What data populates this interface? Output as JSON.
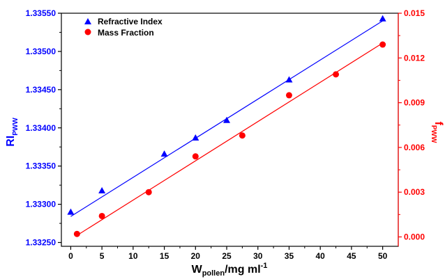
{
  "chart_data": {
    "type": "scatter",
    "x_axis": {
      "label_main": "W",
      "label_sub": "pollen",
      "label_unit": "/mg ml",
      "label_sup": "-1",
      "range": [
        -1.5,
        52.5
      ],
      "ticks": [
        0,
        5,
        10,
        15,
        20,
        25,
        30,
        35,
        40,
        45,
        50
      ],
      "tick_labels": [
        "0",
        "5",
        "10",
        "15",
        "20",
        "25",
        "30",
        "35",
        "40",
        "45",
        "50"
      ]
    },
    "y_axis_left": {
      "label_main": "RI",
      "label_sub": "PWW",
      "range": [
        1.33245,
        1.3355
      ],
      "ticks": [
        1.3325,
        1.333,
        1.3335,
        1.334,
        1.3345,
        1.335,
        1.3355
      ],
      "tick_labels": [
        "1.33250",
        "1.33300",
        "1.33350",
        "1.33400",
        "1.33450",
        "1.33500",
        "1.33550"
      ],
      "color": "#0000ff"
    },
    "y_axis_right": {
      "label_main": "f",
      "label_sub": "PWW",
      "range": [
        -0.00063,
        0.015
      ],
      "ticks": [
        0,
        0.003,
        0.006,
        0.009,
        0.012,
        0.015
      ],
      "tick_labels": [
        "0.000",
        "0.003",
        "0.006",
        "0.009",
        "0.012",
        "0.015"
      ],
      "color": "#ff0000"
    },
    "grid": false,
    "legend_position": "top-left",
    "series": [
      {
        "name": "Refractive Index",
        "axis": "left",
        "marker": "triangle",
        "color": "#0000ff",
        "x": [
          0,
          5,
          15,
          20,
          25,
          35,
          50
        ],
        "y": [
          1.3329,
          1.33318,
          1.33366,
          1.33387,
          1.3341,
          1.33463,
          1.33543
        ],
        "fit_line": {
          "x": [
            0,
            50
          ],
          "y": [
            1.33284,
            1.3354
          ]
        }
      },
      {
        "name": "Mass Fraction",
        "axis": "right",
        "marker": "circle",
        "color": "#ff0000",
        "x": [
          1,
          5,
          12.5,
          20,
          27.5,
          35,
          42.5,
          50
        ],
        "y": [
          0.0002,
          0.0014,
          0.003,
          0.0054,
          0.0068,
          0.0095,
          0.0109,
          0.0129
        ],
        "fit_line": {
          "x": [
            1,
            50
          ],
          "y": [
            0.0001,
            0.013
          ]
        }
      }
    ]
  }
}
